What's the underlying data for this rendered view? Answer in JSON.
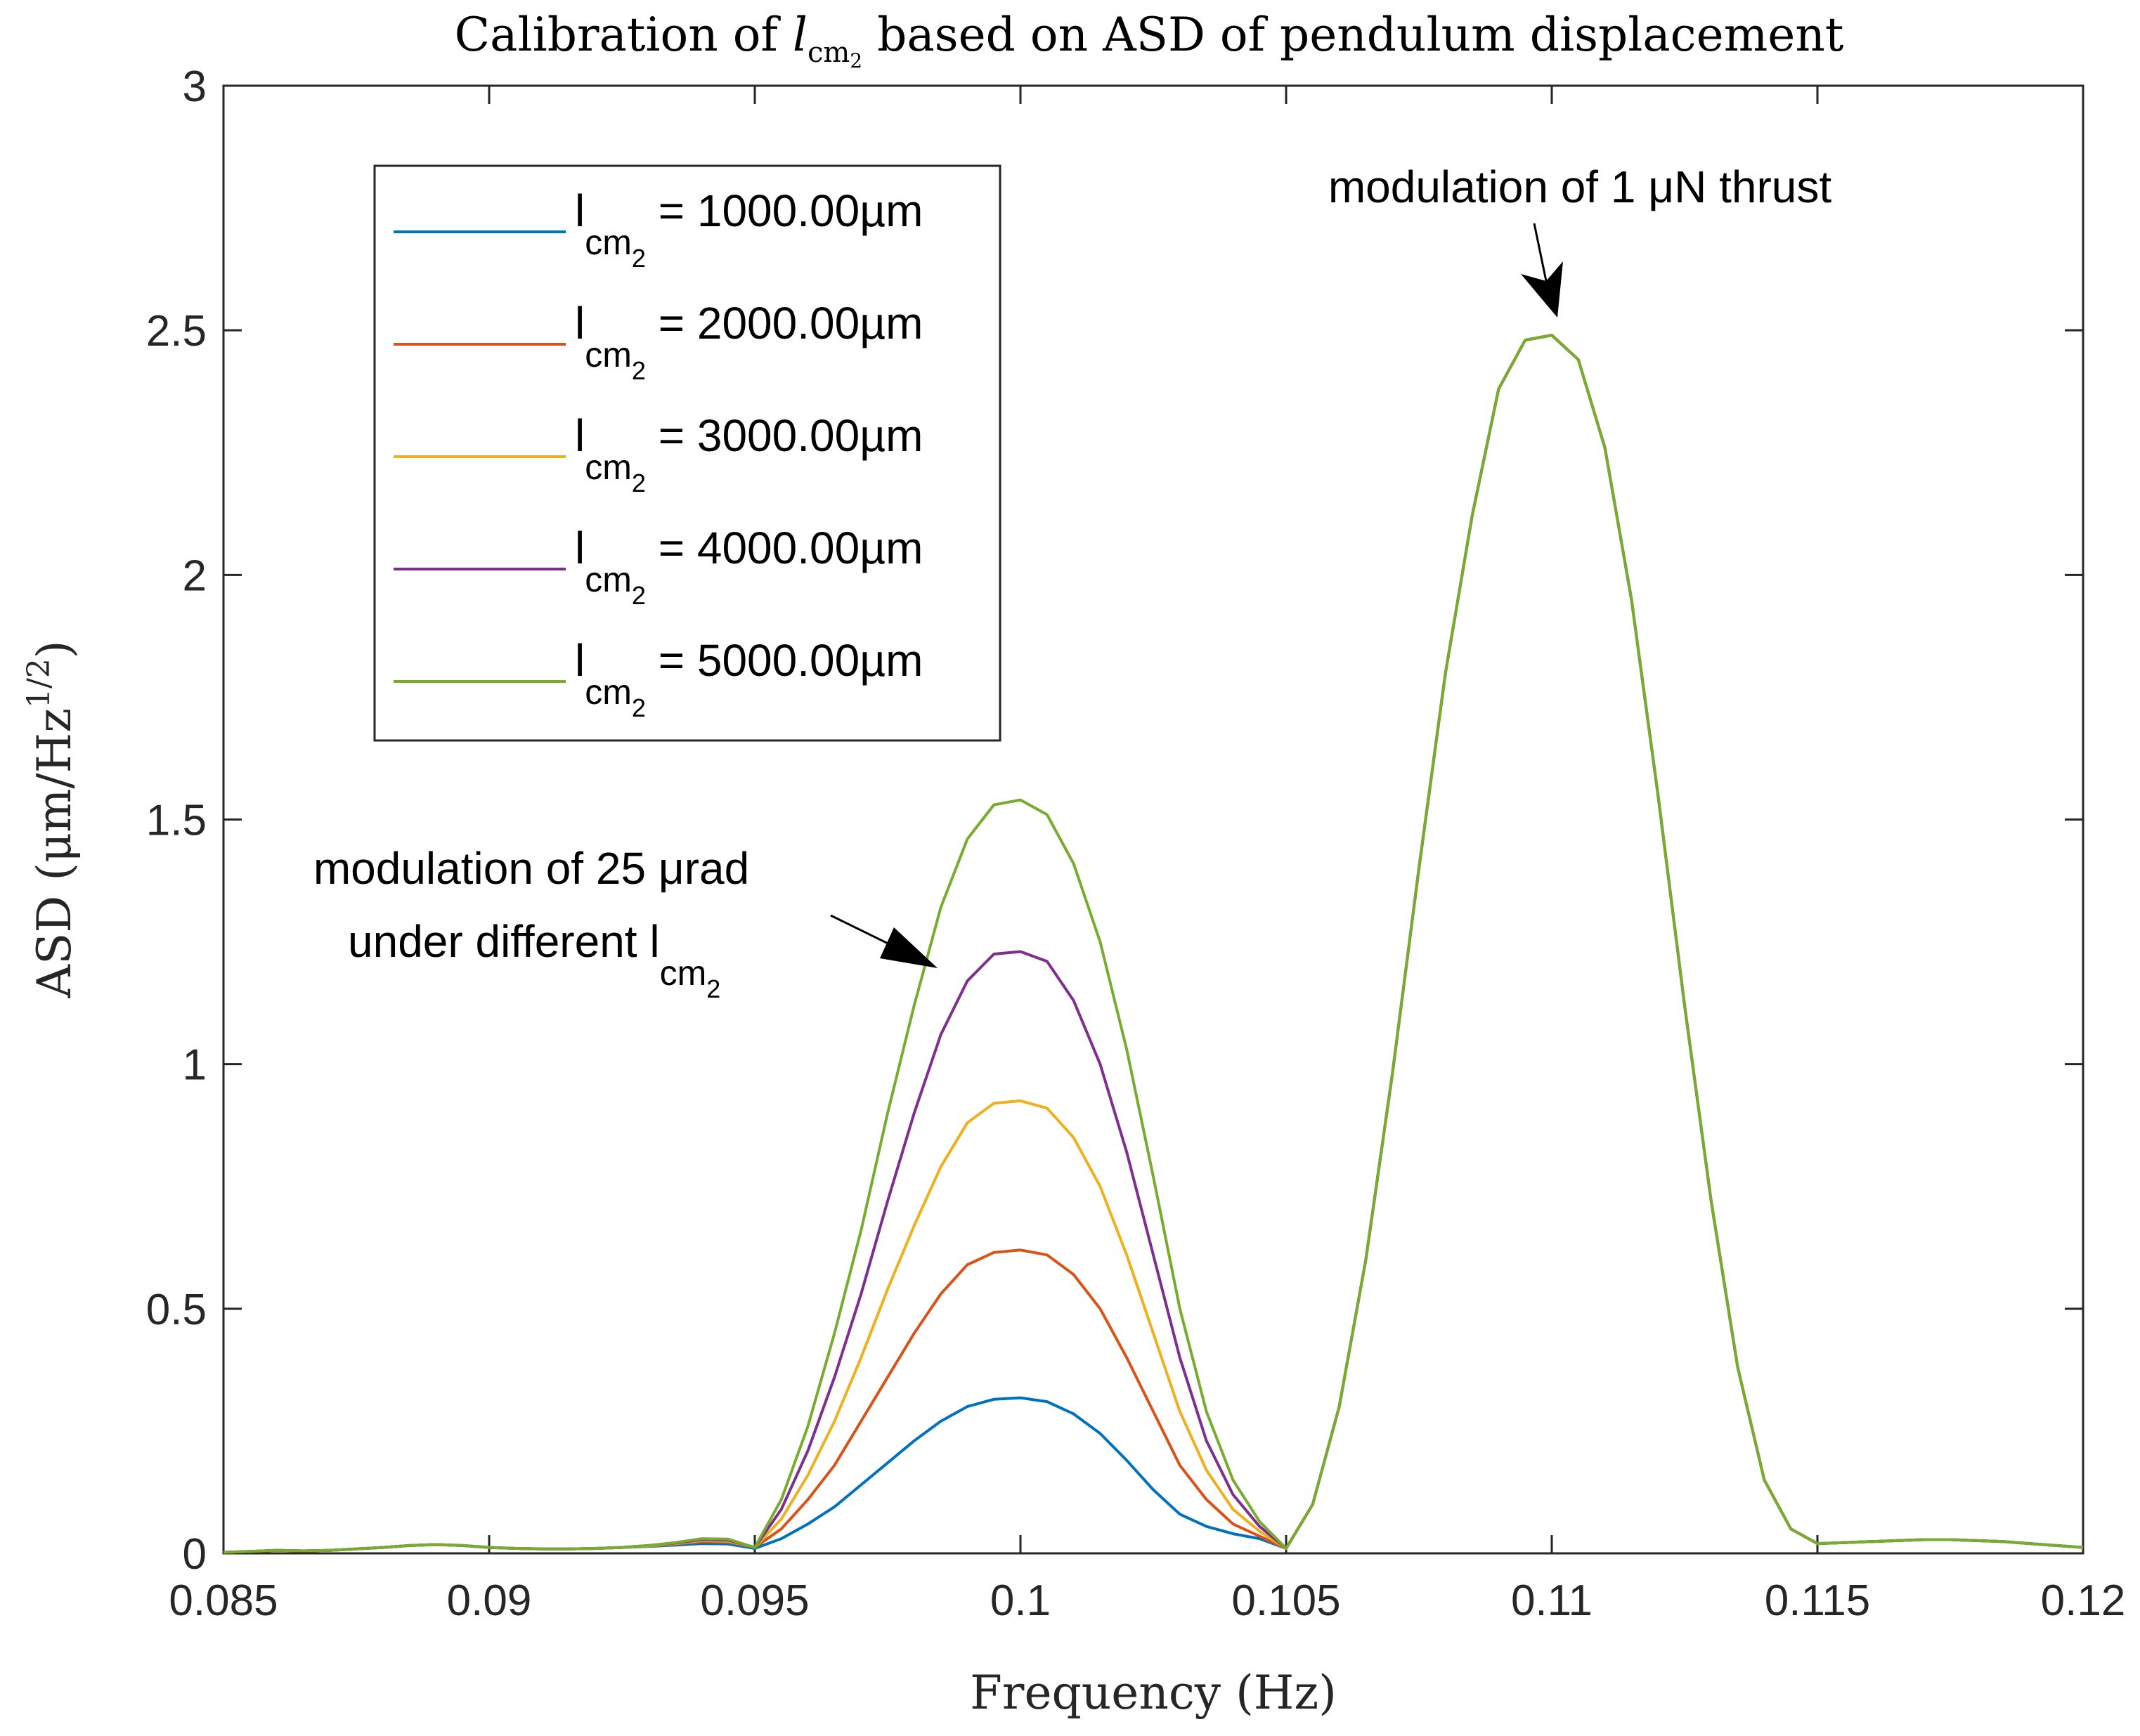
{
  "chart_data": {
    "type": "line",
    "title_prefix": "Calibration of ",
    "title_var": "l",
    "title_var_sub": "cm",
    "title_var_subsub": "2",
    "title_suffix": " based on ASD of pendulum displacement",
    "xlabel": "Frequency (Hz)",
    "ylabel_main": "ASD (μm/Hz",
    "ylabel_sup": "1/2",
    "ylabel_end": ")",
    "xlim": [
      0.085,
      0.12
    ],
    "ylim": [
      0,
      3
    ],
    "xticks": [
      0.085,
      0.09,
      0.095,
      0.1,
      0.105,
      0.11,
      0.115,
      0.12
    ],
    "xtick_labels": [
      "0.085",
      "0.09",
      "0.095",
      "0.1",
      "0.105",
      "0.11",
      "0.115",
      "0.12"
    ],
    "yticks": [
      0,
      0.5,
      1,
      1.5,
      2,
      2.5,
      3
    ],
    "ytick_labels": [
      "0",
      "0.5",
      "1",
      "1.5",
      "2",
      "2.5",
      "3"
    ],
    "x": [
      0.085,
      0.0855,
      0.086,
      0.0865,
      0.087,
      0.0875,
      0.088,
      0.0885,
      0.089,
      0.0895,
      0.09,
      0.0905,
      0.091,
      0.0915,
      0.092,
      0.0925,
      0.093,
      0.0935,
      0.094,
      0.0945,
      0.095,
      0.0955,
      0.096,
      0.0965,
      0.097,
      0.0975,
      0.098,
      0.0985,
      0.099,
      0.0995,
      0.1,
      0.1005,
      0.101,
      0.1015,
      0.102,
      0.1025,
      0.103,
      0.1035,
      0.104,
      0.1045,
      0.105,
      0.1055,
      0.106,
      0.1065,
      0.107,
      0.1075,
      0.108,
      0.1085,
      0.109,
      0.1095,
      0.11,
      0.1105,
      0.111,
      0.1115,
      0.112,
      0.1125,
      0.113,
      0.1135,
      0.114,
      0.1145,
      0.115,
      0.1155,
      0.116,
      0.1165,
      0.117,
      0.1175,
      0.118,
      0.1185,
      0.119,
      0.1195,
      0.12
    ],
    "series": [
      {
        "name": "l_cm2 = 1000.00µm",
        "label_prefix": "l",
        "label_sub": "cm",
        "label_subsub": "2",
        "label_value": " = 1000.00µm",
        "color": "#0072BD",
        "values": [
          0.002,
          0.004,
          0.006,
          0.005,
          0.006,
          0.009,
          0.012,
          0.016,
          0.018,
          0.016,
          0.012,
          0.01,
          0.009,
          0.009,
          0.01,
          0.012,
          0.014,
          0.017,
          0.02,
          0.019,
          0.01,
          0.03,
          0.06,
          0.095,
          0.14,
          0.185,
          0.23,
          0.27,
          0.3,
          0.315,
          0.318,
          0.31,
          0.285,
          0.245,
          0.19,
          0.13,
          0.08,
          0.055,
          0.04,
          0.03,
          0.01,
          0.1,
          0.3,
          0.6,
          0.98,
          1.4,
          1.8,
          2.12,
          2.38,
          2.48,
          2.49,
          2.44,
          2.26,
          1.95,
          1.55,
          1.12,
          0.72,
          0.38,
          0.15,
          0.05,
          0.02,
          0.022,
          0.024,
          0.026,
          0.028,
          0.028,
          0.026,
          0.024,
          0.02,
          0.016,
          0.012
        ]
      },
      {
        "name": "l_cm2 = 2000.00µm",
        "label_prefix": "l",
        "label_sub": "cm",
        "label_subsub": "2",
        "label_value": " = 2000.00µm",
        "color": "#D95319",
        "values": [
          0.002,
          0.004,
          0.006,
          0.005,
          0.006,
          0.009,
          0.012,
          0.016,
          0.018,
          0.016,
          0.012,
          0.01,
          0.009,
          0.009,
          0.01,
          0.012,
          0.015,
          0.019,
          0.024,
          0.023,
          0.012,
          0.05,
          0.11,
          0.18,
          0.27,
          0.36,
          0.45,
          0.53,
          0.59,
          0.615,
          0.62,
          0.61,
          0.57,
          0.5,
          0.4,
          0.29,
          0.18,
          0.11,
          0.06,
          0.035,
          0.01,
          0.1,
          0.3,
          0.6,
          0.98,
          1.4,
          1.8,
          2.12,
          2.38,
          2.48,
          2.49,
          2.44,
          2.26,
          1.95,
          1.55,
          1.12,
          0.72,
          0.38,
          0.15,
          0.05,
          0.02,
          0.022,
          0.024,
          0.026,
          0.028,
          0.028,
          0.026,
          0.024,
          0.02,
          0.016,
          0.012
        ]
      },
      {
        "name": "l_cm2 = 3000.00µm",
        "label_prefix": "l",
        "label_sub": "cm",
        "label_subsub": "2",
        "label_value": " = 3000.00µm",
        "color": "#EDB120",
        "values": [
          0.002,
          0.004,
          0.006,
          0.005,
          0.006,
          0.009,
          0.012,
          0.016,
          0.018,
          0.016,
          0.012,
          0.01,
          0.009,
          0.009,
          0.01,
          0.012,
          0.015,
          0.02,
          0.026,
          0.025,
          0.012,
          0.07,
          0.16,
          0.27,
          0.4,
          0.54,
          0.67,
          0.79,
          0.88,
          0.92,
          0.925,
          0.91,
          0.85,
          0.75,
          0.61,
          0.45,
          0.29,
          0.17,
          0.09,
          0.045,
          0.01,
          0.1,
          0.3,
          0.6,
          0.98,
          1.4,
          1.8,
          2.12,
          2.38,
          2.48,
          2.49,
          2.44,
          2.26,
          1.95,
          1.55,
          1.12,
          0.72,
          0.38,
          0.15,
          0.05,
          0.02,
          0.022,
          0.024,
          0.026,
          0.028,
          0.028,
          0.026,
          0.024,
          0.02,
          0.016,
          0.012
        ]
      },
      {
        "name": "l_cm2 = 4000.00µm",
        "label_prefix": "l",
        "label_sub": "cm",
        "label_subsub": "2",
        "label_value": " = 4000.00µm",
        "color": "#7E2F8E",
        "values": [
          0.002,
          0.004,
          0.006,
          0.005,
          0.006,
          0.009,
          0.012,
          0.016,
          0.018,
          0.016,
          0.012,
          0.01,
          0.009,
          0.009,
          0.01,
          0.012,
          0.016,
          0.021,
          0.028,
          0.027,
          0.012,
          0.09,
          0.21,
          0.36,
          0.53,
          0.72,
          0.9,
          1.06,
          1.17,
          1.225,
          1.23,
          1.21,
          1.13,
          1.0,
          0.82,
          0.61,
          0.4,
          0.23,
          0.12,
          0.055,
          0.01,
          0.1,
          0.3,
          0.6,
          0.98,
          1.4,
          1.8,
          2.12,
          2.38,
          2.48,
          2.49,
          2.44,
          2.26,
          1.95,
          1.55,
          1.12,
          0.72,
          0.38,
          0.15,
          0.05,
          0.02,
          0.022,
          0.024,
          0.026,
          0.028,
          0.028,
          0.026,
          0.024,
          0.02,
          0.016,
          0.012
        ]
      },
      {
        "name": "l_cm2 = 5000.00µm",
        "label_prefix": "l",
        "label_sub": "cm",
        "label_subsub": "2",
        "label_value": " = 5000.00µm",
        "color": "#77AC30",
        "values": [
          0.002,
          0.004,
          0.006,
          0.005,
          0.006,
          0.009,
          0.012,
          0.016,
          0.018,
          0.016,
          0.012,
          0.01,
          0.009,
          0.009,
          0.01,
          0.012,
          0.016,
          0.022,
          0.03,
          0.029,
          0.012,
          0.11,
          0.26,
          0.45,
          0.66,
          0.9,
          1.12,
          1.32,
          1.46,
          1.53,
          1.54,
          1.51,
          1.41,
          1.25,
          1.03,
          0.77,
          0.5,
          0.29,
          0.15,
          0.065,
          0.01,
          0.1,
          0.3,
          0.6,
          0.98,
          1.4,
          1.8,
          2.12,
          2.38,
          2.48,
          2.49,
          2.44,
          2.26,
          1.95,
          1.55,
          1.12,
          0.72,
          0.38,
          0.15,
          0.05,
          0.02,
          0.022,
          0.024,
          0.026,
          0.028,
          0.028,
          0.026,
          0.024,
          0.02,
          0.016,
          0.012
        ]
      }
    ],
    "legend_position": "top-left",
    "annotations": [
      {
        "lines": [
          "modulation of 1 μN thrust"
        ],
        "points_to": [
          0.11,
          2.49
        ]
      },
      {
        "lines": [
          "modulation of 25 μrad",
          "under different l"
        ],
        "line2_sub": "cm",
        "line2_subsub": "2",
        "points_to": [
          0.0987,
          1.19
        ]
      }
    ]
  }
}
